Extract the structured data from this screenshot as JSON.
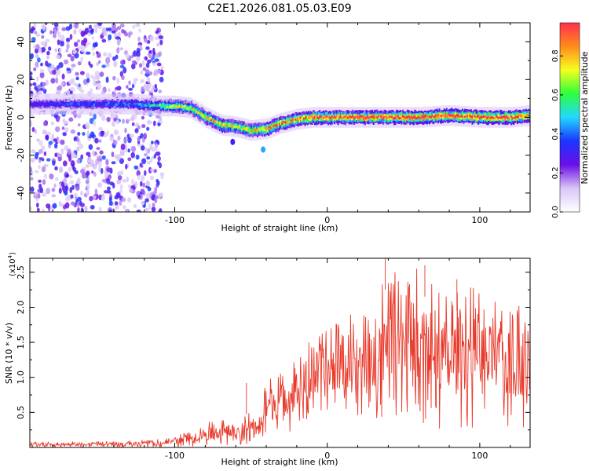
{
  "figure_title": "C2E1.2026.081.05.03.E09",
  "colors": {
    "snr_line": "#e83a2b",
    "frame": "#000000",
    "background": "#ffffff"
  },
  "colormap_stops": [
    "#ffffff",
    "#d9c6f7",
    "#6a0ee6",
    "#1a36ff",
    "#22d8ff",
    "#2dff3c",
    "#f6ff1f",
    "#ff8b1b",
    "#ff2f4e"
  ],
  "chart_data": [
    {
      "type": "heatmap",
      "title": "",
      "xlabel": "Height of straight line (km)",
      "ylabel": "Frequency (Hz)",
      "xlim": [
        -195,
        133
      ],
      "ylim": [
        -50,
        50
      ],
      "xticks": [
        -100,
        0,
        100
      ],
      "yticks": [
        -40,
        -20,
        0,
        20,
        40
      ],
      "colorbar": {
        "label": "Normalized spectral amplitude",
        "lim": [
          0.0,
          0.97
        ],
        "ticks": [
          0.0,
          0.2,
          0.4,
          0.6,
          0.8
        ],
        "tick_labels": [
          "0.0",
          "0.2",
          "0.4",
          "0.6",
          "0.8"
        ]
      },
      "ridge": {
        "x": [
          -195,
          -160,
          -130,
          -110,
          -100,
          -90,
          -80,
          -70,
          -60,
          -50,
          -40,
          -30,
          -20,
          -10,
          0,
          20,
          40,
          60,
          80,
          100,
          120,
          133
        ],
        "frequency": [
          7,
          7,
          7,
          6,
          6,
          5,
          0,
          -4,
          -5,
          -7,
          -6,
          -3,
          -1,
          0,
          0,
          0,
          0,
          0,
          1,
          0,
          0,
          1
        ],
        "peak_amplitude": [
          0.3,
          0.35,
          0.4,
          0.55,
          0.7,
          0.65,
          0.75,
          0.8,
          0.7,
          0.75,
          0.8,
          0.85,
          0.85,
          0.9,
          0.9,
          0.95,
          0.95,
          0.95,
          0.95,
          0.97,
          0.95,
          0.9
        ]
      },
      "noise_region": {
        "x_range": [
          -195,
          -108
        ],
        "frequency_range": [
          -50,
          50
        ],
        "amplitude_range": [
          0.05,
          0.35
        ]
      },
      "isolated_spots": [
        {
          "x": -42,
          "frequency": -17,
          "amplitude": 0.45
        },
        {
          "x": -62,
          "frequency": -13,
          "amplitude": 0.3
        }
      ]
    },
    {
      "type": "line",
      "title": "",
      "xlabel": "Height of straight line (km)",
      "ylabel": "SNR (10 * v/v)",
      "scale_label": "(x10",
      "scale_exponent": "4",
      "scale_close": ")",
      "xlim": [
        -195,
        133
      ],
      "ylim": [
        0,
        27000
      ],
      "xticks": [
        -100,
        0,
        100
      ],
      "yticks": [
        5000,
        10000,
        15000,
        20000,
        25000
      ],
      "ytick_labels": [
        "0.5",
        "1.0",
        "1.5",
        "2.0",
        "2.5"
      ],
      "series": [
        {
          "name": "SNR",
          "envelope_x": [
            -195,
            -150,
            -120,
            -100,
            -90,
            -80,
            -70,
            -60,
            -50,
            -45,
            -40,
            -30,
            -20,
            -10,
            0,
            10,
            20,
            30,
            40,
            50,
            60,
            70,
            80,
            90,
            100,
            110,
            120,
            133
          ],
          "envelope_max": [
            800,
            900,
            1000,
            1500,
            2500,
            3500,
            4500,
            3000,
            6000,
            4000,
            10000,
            11000,
            13000,
            16000,
            17000,
            19000,
            19500,
            20000,
            27000,
            25000,
            26000,
            25000,
            21000,
            24000,
            22000,
            21000,
            20000,
            21000
          ],
          "envelope_min": [
            0,
            0,
            0,
            0,
            100,
            200,
            300,
            200,
            500,
            500,
            1500,
            2000,
            2500,
            3500,
            4000,
            5000,
            3000,
            3500,
            5000,
            4000,
            2000,
            3000,
            2000,
            3000,
            2500,
            2000,
            2500,
            3000
          ],
          "notable_peaks": [
            {
              "x": 38,
              "y": 27000
            },
            {
              "x": 64,
              "y": 26000
            },
            {
              "x": 85,
              "y": 24000
            },
            {
              "x": -53,
              "y": 9200
            }
          ]
        }
      ]
    }
  ]
}
